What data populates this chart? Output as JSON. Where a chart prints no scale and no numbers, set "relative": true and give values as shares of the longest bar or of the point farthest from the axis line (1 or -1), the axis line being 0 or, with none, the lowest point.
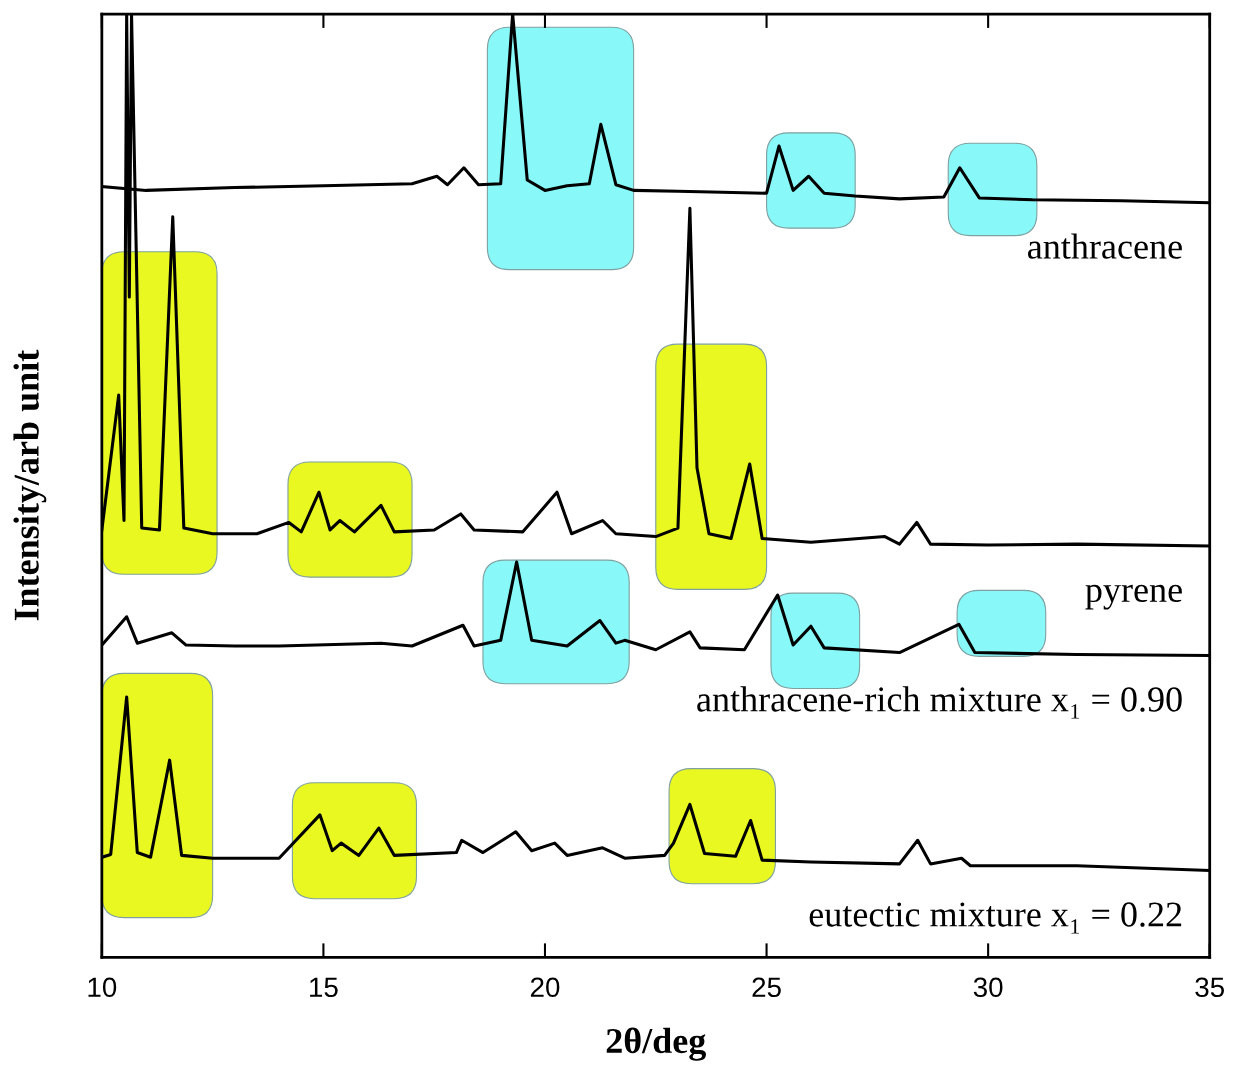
{
  "chart_data": {
    "type": "line",
    "relative": true,
    "xlabel": "2θ/deg",
    "ylabel": "Intensity/arb unit",
    "xlim": [
      10,
      35
    ],
    "xticks": [
      10,
      15,
      20,
      25,
      30,
      35
    ],
    "tick_labels": "x",
    "grid": false,
    "legend": false,
    "marker": "none",
    "line_style": "solid",
    "series": [
      {
        "name": "anthracene",
        "color": "#000000",
        "x": [
          10,
          11,
          13,
          15,
          17,
          17.56,
          17.8,
          18.17,
          18.5,
          19.0,
          19.27,
          19.6,
          20.0,
          20.5,
          21.0,
          21.26,
          21.6,
          22,
          23,
          24,
          25,
          25.28,
          25.6,
          25.95,
          26.3,
          27,
          28,
          29,
          29.36,
          29.8,
          31,
          33,
          35
        ],
        "values": [
          0.817,
          0.813,
          0.816,
          0.818,
          0.82,
          0.828,
          0.819,
          0.837,
          0.819,
          0.82,
          1.0,
          0.824,
          0.813,
          0.818,
          0.82,
          0.883,
          0.819,
          0.813,
          0.812,
          0.811,
          0.81,
          0.86,
          0.813,
          0.828,
          0.81,
          0.807,
          0.804,
          0.806,
          0.837,
          0.805,
          0.803,
          0.802,
          0.8
        ]
      },
      {
        "name": "pyrene",
        "color": "#000000",
        "x": [
          10,
          10.38,
          10.5,
          10.56,
          10.62,
          10.67,
          10.9,
          11.3,
          11.6,
          11.85,
          12.5,
          13.5,
          14.22,
          14.5,
          14.9,
          15.15,
          15.37,
          15.7,
          16.3,
          16.6,
          17.5,
          18.1,
          18.4,
          19.5,
          20.27,
          20.6,
          21.3,
          21.6,
          22.5,
          23.0,
          23.27,
          23.43,
          23.7,
          24.2,
          24.62,
          24.9,
          26,
          27.67,
          28,
          28.39,
          28.7,
          30,
          32,
          35
        ],
        "values": [
          0.453,
          0.596,
          0.463,
          1.0,
          0.7,
          1.0,
          0.455,
          0.453,
          0.785,
          0.455,
          0.449,
          0.449,
          0.461,
          0.451,
          0.493,
          0.453,
          0.463,
          0.451,
          0.479,
          0.451,
          0.453,
          0.47,
          0.453,
          0.451,
          0.493,
          0.449,
          0.463,
          0.449,
          0.446,
          0.455,
          0.794,
          0.519,
          0.449,
          0.444,
          0.523,
          0.444,
          0.44,
          0.446,
          0.438,
          0.461,
          0.438,
          0.437,
          0.438,
          0.436
        ]
      },
      {
        "name": "anthracene-rich mixture x₁ = 0.90",
        "color": "#000000",
        "x": [
          10,
          10.56,
          10.8,
          11.58,
          11.9,
          13,
          14,
          16.3,
          17,
          18.15,
          18.4,
          19.0,
          19.36,
          19.7,
          20.5,
          21.24,
          21.6,
          21.8,
          22.5,
          23.27,
          23.5,
          24.5,
          25.25,
          25.6,
          26.0,
          26.3,
          28,
          29.34,
          29.7,
          32,
          35
        ],
        "values": [
          0.331,
          0.361,
          0.333,
          0.344,
          0.331,
          0.33,
          0.33,
          0.333,
          0.33,
          0.352,
          0.33,
          0.336,
          0.419,
          0.336,
          0.33,
          0.357,
          0.333,
          0.336,
          0.326,
          0.345,
          0.328,
          0.326,
          0.384,
          0.331,
          0.351,
          0.328,
          0.323,
          0.353,
          0.323,
          0.321,
          0.32
        ]
      },
      {
        "name": "eutectic mixture x₁ = 0.22",
        "color": "#000000",
        "x": [
          10,
          10.2,
          10.56,
          10.8,
          11.1,
          11.53,
          11.8,
          12.5,
          14,
          14.92,
          15.2,
          15.4,
          15.8,
          16.25,
          16.6,
          18.0,
          18.12,
          18.6,
          19.34,
          19.7,
          20.22,
          20.5,
          21.3,
          21.8,
          22.7,
          22.9,
          23.27,
          23.6,
          24.3,
          24.64,
          24.9,
          26,
          28,
          28.41,
          28.7,
          29.4,
          29.6,
          32,
          35
        ],
        "values": [
          0.106,
          0.109,
          0.276,
          0.111,
          0.106,
          0.209,
          0.108,
          0.105,
          0.105,
          0.151,
          0.113,
          0.121,
          0.108,
          0.137,
          0.108,
          0.111,
          0.124,
          0.111,
          0.133,
          0.113,
          0.121,
          0.108,
          0.116,
          0.105,
          0.108,
          0.121,
          0.162,
          0.11,
          0.107,
          0.145,
          0.103,
          0.101,
          0.099,
          0.124,
          0.099,
          0.105,
          0.097,
          0.097,
          0.092
        ]
      }
    ]
  }
}
